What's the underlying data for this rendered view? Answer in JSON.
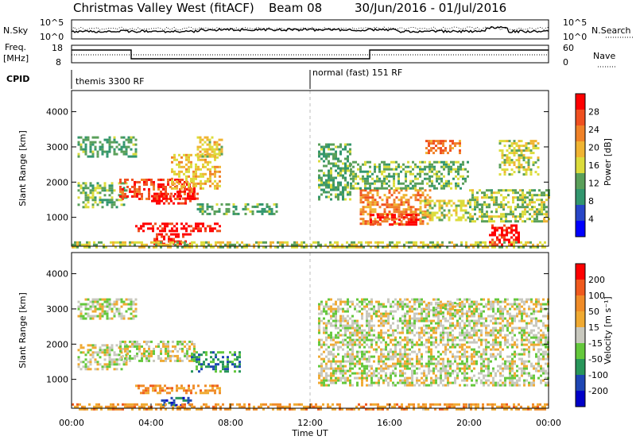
{
  "header": {
    "station": "Christmas Valley West (fitACF)",
    "beam": "Beam 08",
    "dates": "30/Jun/2016 - 01/Jul/2016"
  },
  "nsky_panel": {
    "left_label": "N.Sky",
    "right_label": "N.Search",
    "left_ticks": [
      "10^5",
      "10^0"
    ],
    "right_ticks": [
      "10^5",
      "10^0"
    ]
  },
  "freq_panel": {
    "left_label_1": "Freq.",
    "left_label_2": "[MHz]",
    "right_label": "Nave",
    "left_ticks": [
      "18",
      "8"
    ],
    "right_ticks": [
      "60",
      "0"
    ]
  },
  "cpid_panel": {
    "label": "CPID",
    "mode_1": "themis 3300 RF",
    "mode_2": "normal (fast) 151 RF"
  },
  "x_axis": {
    "label": "Time UT",
    "ticks": [
      "00:00",
      "04:00",
      "08:00",
      "12:00",
      "16:00",
      "20:00",
      "00:00"
    ]
  },
  "colors": {
    "power_scale": [
      "#0000ff",
      "#2846c8",
      "#32966e",
      "#5aa05a",
      "#dcdc3c",
      "#f0b432",
      "#f08228",
      "#f05020",
      "#ff0000"
    ],
    "velocity_scale": [
      "#0000c8",
      "#1e46b4",
      "#28965a",
      "#64c83c",
      "#c8c8be",
      "#f0aa32",
      "#f08c28",
      "#f05a1e",
      "#ff0000"
    ],
    "ground_scatter": "#bebebe"
  },
  "chart_data": [
    {
      "type": "heatmap",
      "title": "",
      "ylabel": "Slant Range [km]",
      "xlabel": "",
      "xlim": [
        0,
        24
      ],
      "ylim": [
        180,
        4600
      ],
      "y_ticks": [
        "1000",
        "2000",
        "3000",
        "4000"
      ],
      "colorbar": {
        "label": "Power [dB]",
        "range": [
          0,
          30
        ],
        "ticks": [
          "4",
          "8",
          "12",
          "16",
          "20",
          "24",
          "28"
        ]
      },
      "regions": [
        {
          "t0": 0.3,
          "t1": 2.8,
          "r0": 1300,
          "r1": 2000,
          "level": 0.4
        },
        {
          "t0": 0.3,
          "t1": 3.2,
          "r0": 2700,
          "r1": 3300,
          "level": 0.35
        },
        {
          "t0": 2.4,
          "t1": 6.2,
          "r0": 1500,
          "r1": 2100,
          "level": 0.85
        },
        {
          "t0": 4.0,
          "t1": 6.4,
          "r0": 1400,
          "r1": 1700,
          "level": 0.92
        },
        {
          "t0": 5.0,
          "t1": 7.5,
          "r0": 1800,
          "r1": 2800,
          "level": 0.6
        },
        {
          "t0": 3.2,
          "t1": 7.5,
          "r0": 600,
          "r1": 850,
          "level": 0.95
        },
        {
          "t0": 4.0,
          "t1": 6.0,
          "r0": 250,
          "r1": 550,
          "level": 0.95
        },
        {
          "t0": 6.3,
          "t1": 7.6,
          "r0": 2700,
          "r1": 3300,
          "level": 0.55
        },
        {
          "t0": 6.3,
          "t1": 10.3,
          "r0": 1100,
          "r1": 1400,
          "level": 0.35
        },
        {
          "t0": 0.0,
          "t1": 24.0,
          "r0": 180,
          "r1": 320,
          "level": 0.5
        },
        {
          "t0": 12.4,
          "t1": 14.0,
          "r0": 1500,
          "r1": 3100,
          "level": 0.35
        },
        {
          "t0": 14.5,
          "t1": 18.0,
          "r0": 800,
          "r1": 1800,
          "level": 0.7
        },
        {
          "t0": 15.0,
          "t1": 17.5,
          "r0": 800,
          "r1": 1100,
          "level": 0.9
        },
        {
          "t0": 14.0,
          "t1": 20.0,
          "r0": 1800,
          "r1": 2600,
          "level": 0.4
        },
        {
          "t0": 17.5,
          "t1": 20.0,
          "r0": 900,
          "r1": 1500,
          "level": 0.5
        },
        {
          "t0": 17.8,
          "t1": 19.5,
          "r0": 2800,
          "r1": 3200,
          "level": 0.75
        },
        {
          "t0": 20.0,
          "t1": 24.0,
          "r0": 900,
          "r1": 1800,
          "level": 0.45
        },
        {
          "t0": 21.0,
          "t1": 22.5,
          "r0": 250,
          "r1": 800,
          "level": 0.95
        },
        {
          "t0": 21.5,
          "t1": 23.5,
          "r0": 2200,
          "r1": 3200,
          "level": 0.5
        }
      ]
    },
    {
      "type": "heatmap",
      "title": "",
      "ylabel": "Slant Range [km]",
      "xlabel": "Time UT",
      "xlim": [
        0,
        24
      ],
      "ylim": [
        180,
        4600
      ],
      "y_ticks": [
        "1000",
        "2000",
        "3000",
        "4000"
      ],
      "colorbar": {
        "label": "Velocity [m s⁻¹]",
        "range": [
          -250,
          250
        ],
        "ticks": [
          "200",
          "100",
          "50",
          "15",
          "-15",
          "-50",
          "-100",
          "-200"
        ]
      },
      "regions": [
        {
          "t0": 0.3,
          "t1": 2.8,
          "r0": 1300,
          "r1": 2000,
          "level": 0.5
        },
        {
          "t0": 0.3,
          "t1": 3.2,
          "r0": 2700,
          "r1": 3300,
          "level": 0.5
        },
        {
          "t0": 2.4,
          "t1": 6.2,
          "r0": 1500,
          "r1": 2100,
          "level": 0.5
        },
        {
          "t0": 6.0,
          "t1": 8.5,
          "r0": 1200,
          "r1": 1800,
          "level": 0.28
        },
        {
          "t0": 3.2,
          "t1": 7.5,
          "r0": 600,
          "r1": 850,
          "level": 0.7
        },
        {
          "t0": 4.5,
          "t1": 6.0,
          "r0": 250,
          "r1": 500,
          "level": 0.2
        },
        {
          "t0": 0.0,
          "t1": 24.0,
          "r0": 180,
          "r1": 320,
          "level": 0.68
        },
        {
          "t0": 12.4,
          "t1": 24.0,
          "r0": 800,
          "r1": 3300,
          "level": 0.5
        },
        {
          "t0": 17.8,
          "t1": 19.5,
          "r0": 2800,
          "r1": 3200,
          "level": 0.5
        }
      ]
    }
  ]
}
